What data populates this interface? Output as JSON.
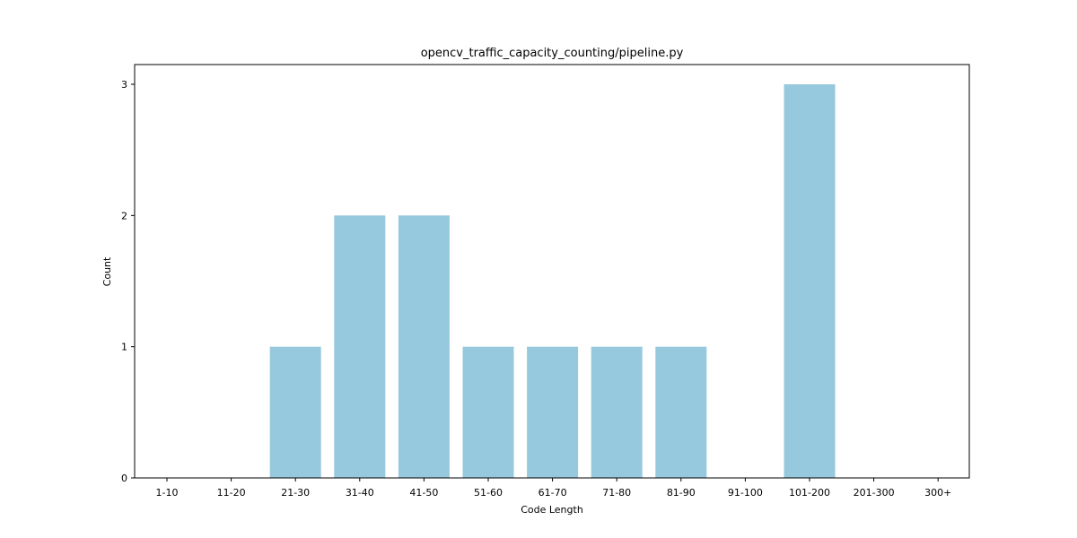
{
  "chart_data": {
    "type": "bar",
    "title": "opencv_traffic_capacity_counting/pipeline.py",
    "xlabel": "Code Length",
    "ylabel": "Count",
    "categories": [
      "1-10",
      "11-20",
      "21-30",
      "31-40",
      "41-50",
      "51-60",
      "61-70",
      "71-80",
      "81-90",
      "91-100",
      "101-200",
      "201-300",
      "300+"
    ],
    "values": [
      0,
      0,
      1,
      2,
      2,
      1,
      1,
      1,
      1,
      0,
      3,
      0,
      0
    ],
    "yticks": [
      0,
      1,
      2,
      3
    ],
    "ylim": [
      0,
      3.15
    ],
    "grid": false,
    "legend": "none",
    "bar_color": "#96c9dd"
  }
}
